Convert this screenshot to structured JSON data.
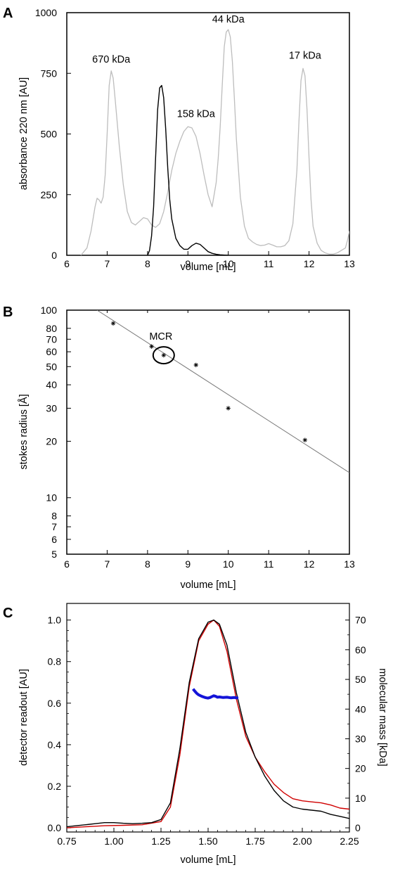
{
  "chart_data": [
    {
      "panel": "A",
      "type": "line",
      "xlabel": "volume [mL]",
      "ylabel": "absorbance 220 nm [AU]",
      "xlim": [
        6,
        13
      ],
      "ylim": [
        0,
        1000
      ],
      "x_ticks": [
        "6",
        "7",
        "8",
        "9",
        "10",
        "11",
        "12",
        "13"
      ],
      "y_ticks": [
        "0",
        "250",
        "500",
        "750",
        "1000"
      ],
      "peak_labels": [
        {
          "text": "670 kDa",
          "x": 7.1,
          "y": 760
        },
        {
          "text": "158 kDa",
          "x": 9.2,
          "y": 535
        },
        {
          "text": "44 kDa",
          "x": 10.0,
          "y": 925
        },
        {
          "text": "17 kDa",
          "x": 11.9,
          "y": 775
        }
      ],
      "series": [
        {
          "color": "#bdbdbd",
          "x": [
            6.35,
            6.5,
            6.6,
            6.7,
            6.75,
            6.8,
            6.85,
            6.9,
            6.95,
            7.0,
            7.05,
            7.1,
            7.15,
            7.2,
            7.3,
            7.4,
            7.5,
            7.6,
            7.7,
            7.8,
            7.9,
            8.0,
            8.1,
            8.2,
            8.3,
            8.4,
            8.5,
            8.6,
            8.7,
            8.8,
            8.9,
            9.0,
            9.1,
            9.2,
            9.3,
            9.4,
            9.5,
            9.6,
            9.7,
            9.75,
            9.8,
            9.85,
            9.9,
            9.95,
            10.0,
            10.05,
            10.1,
            10.15,
            10.2,
            10.3,
            10.4,
            10.5,
            10.6,
            10.7,
            10.8,
            10.9,
            11.0,
            11.1,
            11.2,
            11.3,
            11.4,
            11.5,
            11.6,
            11.7,
            11.75,
            11.8,
            11.85,
            11.9,
            11.95,
            12.0,
            12.05,
            12.1,
            12.2,
            12.3,
            12.4,
            12.5,
            12.6,
            12.7,
            12.8,
            12.9,
            12.95,
            13.0
          ],
          "y": [
            0,
            30,
            100,
            200,
            235,
            228,
            215,
            240,
            330,
            500,
            700,
            760,
            730,
            640,
            450,
            290,
            180,
            135,
            125,
            140,
            155,
            150,
            125,
            115,
            130,
            180,
            260,
            350,
            420,
            470,
            510,
            530,
            525,
            490,
            420,
            330,
            250,
            200,
            300,
            400,
            530,
            700,
            860,
            920,
            930,
            900,
            800,
            650,
            480,
            240,
            120,
            70,
            55,
            45,
            40,
            42,
            48,
            42,
            35,
            35,
            40,
            60,
            130,
            350,
            550,
            720,
            770,
            740,
            600,
            400,
            230,
            120,
            50,
            20,
            10,
            5,
            5,
            10,
            20,
            30,
            60,
            100
          ]
        },
        {
          "color": "#000000",
          "x": [
            8.0,
            8.05,
            8.1,
            8.15,
            8.2,
            8.25,
            8.3,
            8.35,
            8.4,
            8.45,
            8.5,
            8.55,
            8.6,
            8.7,
            8.8,
            8.9,
            9.0,
            9.1,
            9.2,
            9.3,
            9.4,
            9.5,
            9.6,
            9.7,
            9.8,
            9.9,
            10.0
          ],
          "y": [
            0,
            20,
            80,
            200,
            400,
            600,
            690,
            700,
            650,
            520,
            360,
            230,
            150,
            70,
            40,
            25,
            25,
            40,
            50,
            45,
            30,
            15,
            8,
            4,
            2,
            1,
            0
          ]
        }
      ]
    },
    {
      "panel": "B",
      "type": "scatter",
      "xlabel": "volume [mL]",
      "ylabel": "stokes radius [Å]",
      "xlim": [
        6,
        13
      ],
      "ylim": [
        5,
        100
      ],
      "yscale": "log",
      "x_ticks": [
        "6",
        "7",
        "8",
        "9",
        "10",
        "11",
        "12",
        "13"
      ],
      "y_ticks": [
        "5",
        "6",
        "7",
        "8",
        "10",
        "20",
        "30",
        "40",
        "50",
        "60",
        "70",
        "80",
        "100"
      ],
      "points": {
        "x": [
          7.15,
          8.1,
          9.2,
          10.0,
          11.9
        ],
        "y": [
          85,
          64,
          51,
          30,
          20.3
        ]
      },
      "mcr": {
        "label": "MCR",
        "x": 8.4,
        "y": 57.5
      },
      "fit_line": {
        "x": [
          6.75,
          13.0
        ],
        "y": [
          100,
          13.6
        ]
      }
    },
    {
      "panel": "C",
      "type": "line",
      "xlabel": "volume [mL]",
      "ylabel": "detector readout [AU]",
      "y2label": "molecular mass [kDa]",
      "xlim": [
        0.75,
        2.25
      ],
      "ylim": [
        -0.02,
        1.08
      ],
      "y2lim": [
        -1.4,
        75.6
      ],
      "x_ticks": [
        "0.75",
        "1.00",
        "1.25",
        "1.50",
        "1.75",
        "2.00",
        "2.25"
      ],
      "y_ticks": [
        "0.0",
        "0.2",
        "0.4",
        "0.6",
        "0.8",
        "1.0"
      ],
      "y2_ticks": [
        "0",
        "10",
        "20",
        "30",
        "40",
        "50",
        "60",
        "70"
      ],
      "series": [
        {
          "color": "#d00000",
          "x": [
            0.75,
            0.85,
            0.95,
            1.05,
            1.15,
            1.25,
            1.3,
            1.35,
            1.4,
            1.45,
            1.5,
            1.53,
            1.56,
            1.6,
            1.65,
            1.7,
            1.75,
            1.8,
            1.85,
            1.9,
            1.95,
            2.0,
            2.05,
            2.1,
            2.15,
            2.2,
            2.25
          ],
          "y": [
            0.0,
            0.005,
            0.01,
            0.012,
            0.015,
            0.03,
            0.1,
            0.35,
            0.68,
            0.9,
            0.98,
            1.0,
            0.97,
            0.85,
            0.62,
            0.44,
            0.34,
            0.27,
            0.21,
            0.17,
            0.14,
            0.13,
            0.125,
            0.12,
            0.11,
            0.095,
            0.09
          ]
        },
        {
          "color": "#000000",
          "x": [
            0.75,
            0.8,
            0.85,
            0.9,
            0.95,
            1.0,
            1.05,
            1.1,
            1.15,
            1.2,
            1.25,
            1.3,
            1.35,
            1.4,
            1.45,
            1.5,
            1.53,
            1.56,
            1.6,
            1.65,
            1.7,
            1.75,
            1.8,
            1.85,
            1.9,
            1.95,
            2.0,
            2.05,
            2.1,
            2.15,
            2.2,
            2.25
          ],
          "y": [
            0.005,
            0.01,
            0.015,
            0.02,
            0.025,
            0.025,
            0.022,
            0.02,
            0.022,
            0.025,
            0.04,
            0.12,
            0.38,
            0.7,
            0.91,
            0.99,
            1.0,
            0.98,
            0.88,
            0.65,
            0.46,
            0.34,
            0.25,
            0.18,
            0.13,
            0.1,
            0.09,
            0.085,
            0.08,
            0.065,
            0.055,
            0.045
          ]
        },
        {
          "color": "#1414d8",
          "axis": "y2",
          "x": [
            1.42,
            1.43,
            1.44,
            1.45,
            1.46,
            1.47,
            1.48,
            1.49,
            1.5,
            1.51,
            1.52,
            1.53,
            1.54,
            1.55,
            1.56,
            1.58,
            1.6,
            1.62,
            1.64,
            1.66
          ],
          "y": [
            46.8,
            46.0,
            45.3,
            44.8,
            44.5,
            44.2,
            44.0,
            43.8,
            43.7,
            43.9,
            44.2,
            44.5,
            44.3,
            44.0,
            44.1,
            43.9,
            44.0,
            43.8,
            43.9,
            43.7
          ]
        }
      ]
    }
  ]
}
